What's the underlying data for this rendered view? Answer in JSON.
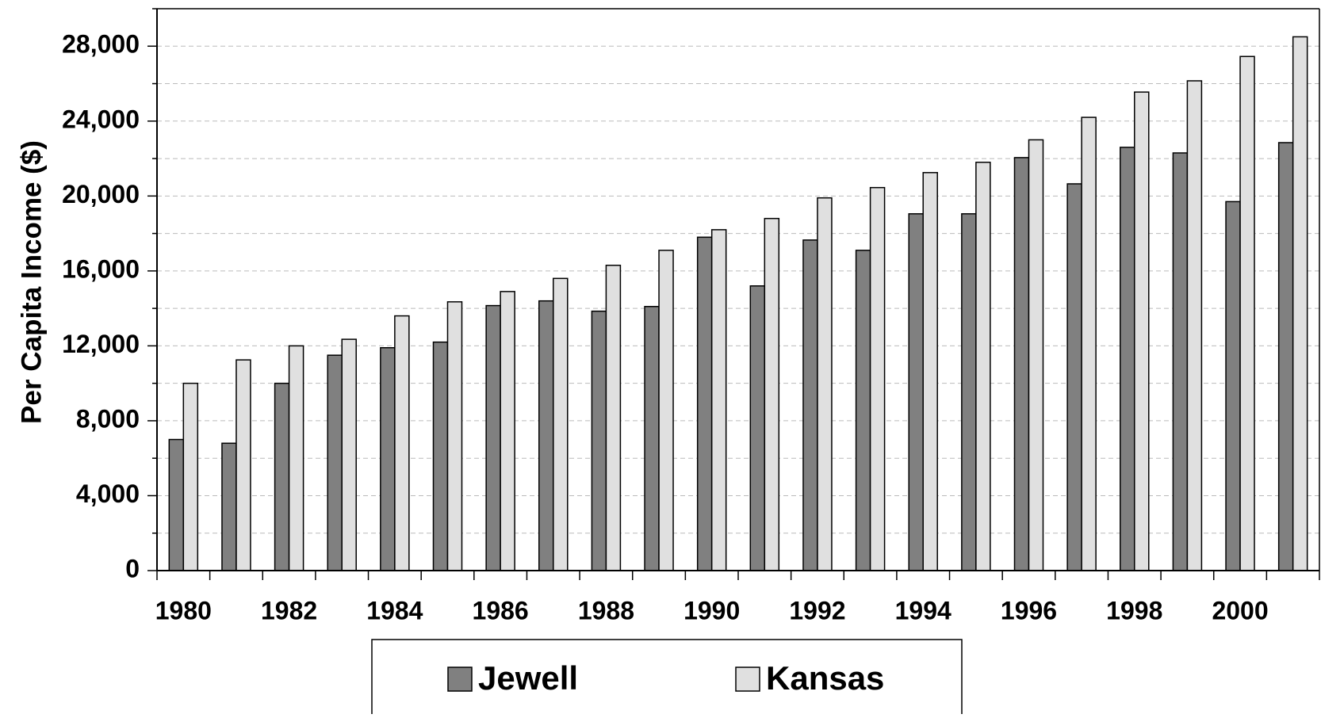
{
  "chart_data": {
    "type": "bar",
    "y_label": "Per Capita Income ($)",
    "categories": [
      "1980",
      null,
      "1982",
      null,
      "1984",
      null,
      "1986",
      null,
      "1988",
      null,
      "1990",
      null,
      "1992",
      null,
      "1994",
      null,
      "1996",
      null,
      "1998",
      null,
      "2000",
      null
    ],
    "series": [
      {
        "name": "Jewell",
        "color": "#808080",
        "values": [
          7000,
          6800,
          10000,
          11500,
          11900,
          12200,
          14150,
          14400,
          13850,
          14100,
          17800,
          15200,
          17650,
          17100,
          19050,
          19050,
          22050,
          20650,
          22600,
          22300,
          19700,
          22850
        ]
      },
      {
        "name": "Kansas",
        "color": "#e0e0e0",
        "values": [
          10000,
          11250,
          12000,
          12350,
          13600,
          14350,
          14900,
          15600,
          16300,
          17100,
          18200,
          18800,
          19900,
          20450,
          21250,
          21800,
          23000,
          24200,
          25550,
          26150,
          27450,
          28500
        ]
      }
    ],
    "ylim": [
      0,
      30000
    ],
    "yticks": [
      0,
      {
        "value": 4000,
        "label": "4,000"
      },
      {
        "value": 8000,
        "label": "8,000"
      },
      {
        "value": 12000,
        "label": "12,000"
      },
      {
        "value": 16000,
        "label": "16,000"
      },
      {
        "value": 20000,
        "label": "20,000"
      },
      {
        "value": 24000,
        "label": "24,000"
      },
      {
        "value": 28000,
        "label": "28,000"
      }
    ],
    "minor_yticks": [
      2000,
      6000,
      10000,
      14000,
      18000,
      22000,
      26000,
      30000
    ],
    "grid": true,
    "legend": "bottom"
  }
}
